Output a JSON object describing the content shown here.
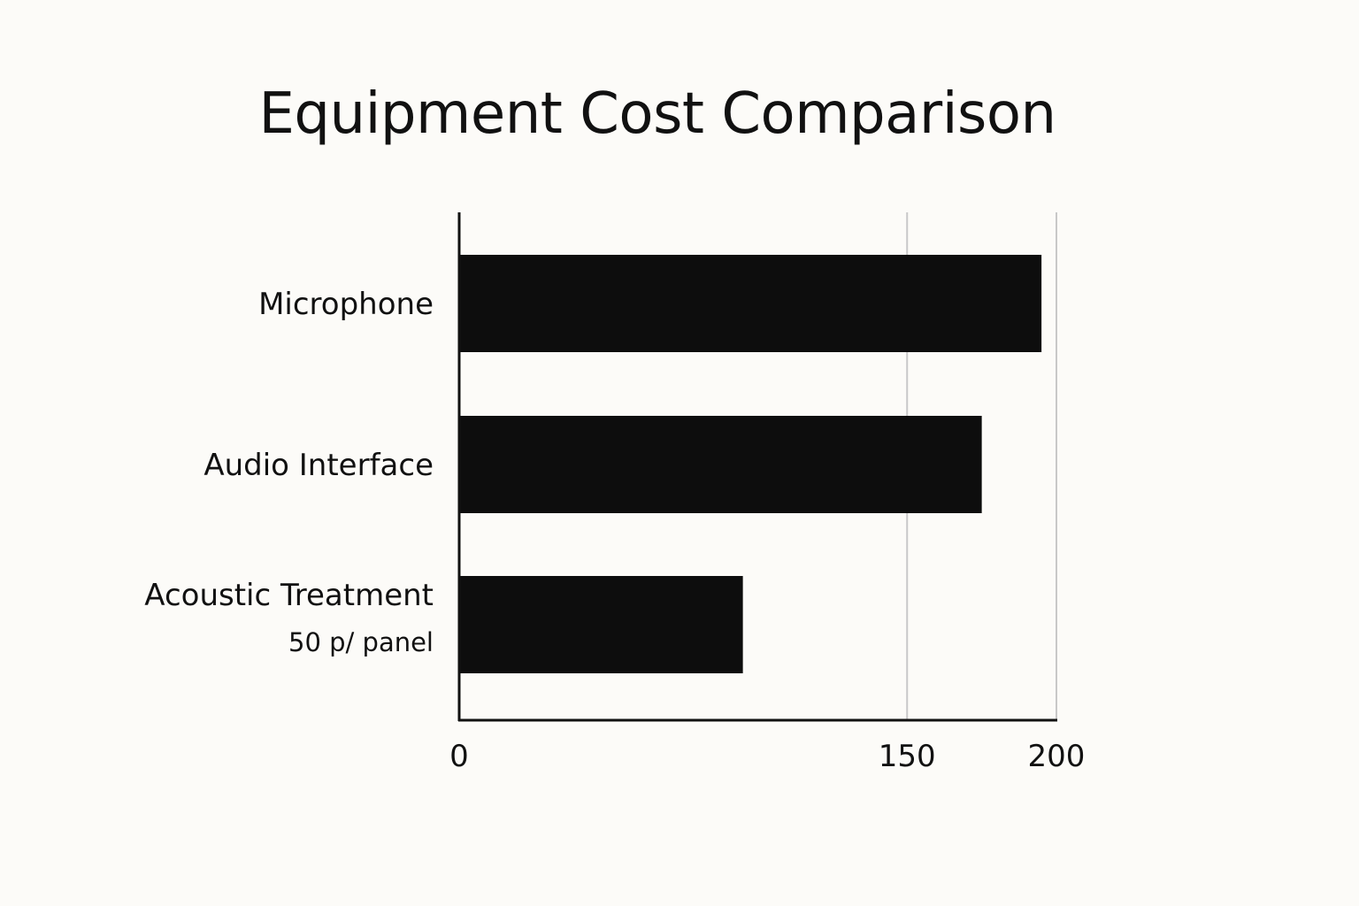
{
  "chart_data": {
    "type": "bar",
    "orientation": "horizontal",
    "title": "Equipment Cost Comparison",
    "categories": [
      "Microphone",
      "Audio Interface",
      "Acoustic Treatment"
    ],
    "category_sublabels": [
      "",
      "",
      "50 p/ panel"
    ],
    "values": [
      195,
      175,
      95
    ],
    "x_ticks": [
      {
        "value": 0,
        "label": "0"
      },
      {
        "value": 150,
        "label": "150"
      },
      {
        "value": 200,
        "label": "200"
      }
    ],
    "gridlines": [
      150,
      200
    ],
    "xlim": [
      0,
      200
    ],
    "xlabel": "",
    "ylabel": "",
    "grid": true,
    "legend": "none",
    "colors": {
      "bar": "#0d0d0d",
      "axis": "#111111",
      "grid": "#c8c8c8",
      "background": "#fcfbf8"
    }
  }
}
